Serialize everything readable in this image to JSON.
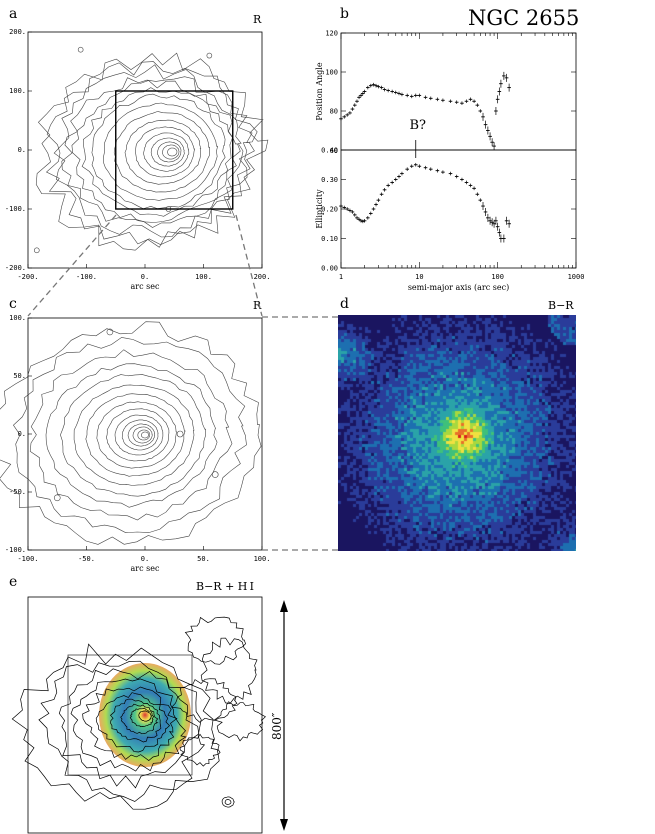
{
  "figure": {
    "title": "NGC 2655",
    "panels": {
      "a": {
        "letter": "a",
        "band": "R",
        "xlabel": "arc sec"
      },
      "b": {
        "letter": "b",
        "annotation": "B?"
      },
      "c": {
        "letter": "c",
        "band": "R",
        "xlabel": "arc sec"
      },
      "d": {
        "letter": "d",
        "band": "B−R"
      },
      "e": {
        "letter": "e",
        "band": "B−R + H I",
        "scale_label": "800″"
      }
    }
  },
  "chart_data": [
    {
      "id": "a",
      "type": "contour",
      "band": "R",
      "xlabel": "arc sec",
      "xlim": [
        -200,
        200
      ],
      "ylim": [
        -200,
        200
      ],
      "xticks": [
        "-200.",
        "-100.",
        "0.",
        "100.",
        "200."
      ],
      "yticks": [
        "200.",
        "100.",
        "0.",
        "-100.",
        "-200."
      ],
      "center": [
        50,
        0
      ],
      "inset_box": {
        "x": [
          -50,
          150
        ],
        "y": [
          -100,
          100
        ]
      }
    },
    {
      "id": "b",
      "type": "scatter",
      "xlabel": "semi-major axis (arc sec)",
      "xscale": "log",
      "xlim": [
        1,
        1000
      ],
      "xticks": [
        "1",
        "10",
        "100",
        "1000"
      ],
      "annotation": {
        "text": "B?",
        "x": 9
      },
      "panels": [
        {
          "ylabel": "Position Angle",
          "ylim": [
            60,
            120
          ],
          "yticks": [
            "60",
            "80",
            "100",
            "120"
          ],
          "points": [
            [
              1.0,
              76
            ],
            [
              1.1,
              77
            ],
            [
              1.2,
              78
            ],
            [
              1.3,
              79
            ],
            [
              1.4,
              81
            ],
            [
              1.5,
              83
            ],
            [
              1.6,
              85
            ],
            [
              1.7,
              87
            ],
            [
              1.8,
              88
            ],
            [
              1.9,
              89
            ],
            [
              2.0,
              90
            ],
            [
              2.2,
              92
            ],
            [
              2.4,
              93
            ],
            [
              2.6,
              93.5
            ],
            [
              2.8,
              93
            ],
            [
              3.0,
              92.5
            ],
            [
              3.3,
              92
            ],
            [
              3.6,
              91
            ],
            [
              4.0,
              90.5
            ],
            [
              4.5,
              90
            ],
            [
              5.0,
              89.5
            ],
            [
              5.5,
              89
            ],
            [
              6.0,
              88.5
            ],
            [
              7.0,
              88
            ],
            [
              8.0,
              87.5
            ],
            [
              9.0,
              88
            ],
            [
              10,
              88
            ],
            [
              12,
              87
            ],
            [
              14,
              86.5
            ],
            [
              17,
              86
            ],
            [
              20,
              85.5
            ],
            [
              25,
              85
            ],
            [
              30,
              84.5
            ],
            [
              35,
              84
            ],
            [
              40,
              85
            ],
            [
              45,
              86
            ],
            [
              50,
              85
            ],
            [
              55,
              83
            ],
            [
              60,
              80
            ],
            [
              65,
              77
            ],
            [
              70,
              73
            ],
            [
              75,
              70
            ],
            [
              80,
              67
            ],
            [
              85,
              64
            ],
            [
              90,
              62
            ],
            [
              95,
              80
            ],
            [
              100,
              86
            ],
            [
              105,
              90
            ],
            [
              110,
              94
            ],
            [
              120,
              98
            ],
            [
              130,
              97
            ],
            [
              140,
              92
            ]
          ]
        },
        {
          "ylabel": "Ellipticity",
          "ylim": [
            0,
            0.4
          ],
          "yticks": [
            "0.00",
            "0.10",
            "0.20",
            "0.30",
            "0.40"
          ],
          "points": [
            [
              1.0,
              0.21
            ],
            [
              1.1,
              0.205
            ],
            [
              1.2,
              0.2
            ],
            [
              1.3,
              0.195
            ],
            [
              1.4,
              0.19
            ],
            [
              1.5,
              0.18
            ],
            [
              1.6,
              0.17
            ],
            [
              1.7,
              0.165
            ],
            [
              1.8,
              0.16
            ],
            [
              1.9,
              0.158
            ],
            [
              2.0,
              0.16
            ],
            [
              2.2,
              0.17
            ],
            [
              2.4,
              0.185
            ],
            [
              2.6,
              0.2
            ],
            [
              2.8,
              0.215
            ],
            [
              3.0,
              0.23
            ],
            [
              3.3,
              0.25
            ],
            [
              3.6,
              0.265
            ],
            [
              4.0,
              0.28
            ],
            [
              4.5,
              0.29
            ],
            [
              5.0,
              0.3
            ],
            [
              5.5,
              0.31
            ],
            [
              6.0,
              0.32
            ],
            [
              7.0,
              0.335
            ],
            [
              8.0,
              0.345
            ],
            [
              9.0,
              0.35
            ],
            [
              10,
              0.345
            ],
            [
              12,
              0.34
            ],
            [
              14,
              0.335
            ],
            [
              17,
              0.33
            ],
            [
              20,
              0.325
            ],
            [
              25,
              0.32
            ],
            [
              30,
              0.31
            ],
            [
              35,
              0.3
            ],
            [
              40,
              0.29
            ],
            [
              45,
              0.28
            ],
            [
              50,
              0.27
            ],
            [
              55,
              0.25
            ],
            [
              60,
              0.23
            ],
            [
              65,
              0.21
            ],
            [
              70,
              0.19
            ],
            [
              75,
              0.17
            ],
            [
              80,
              0.16
            ],
            [
              85,
              0.155
            ],
            [
              90,
              0.15
            ],
            [
              95,
              0.16
            ],
            [
              100,
              0.14
            ],
            [
              105,
              0.12
            ],
            [
              110,
              0.1
            ],
            [
              120,
              0.1
            ],
            [
              130,
              0.16
            ],
            [
              140,
              0.15
            ]
          ]
        }
      ]
    },
    {
      "id": "c",
      "type": "contour",
      "band": "R",
      "xlabel": "arc sec",
      "xlim": [
        -100,
        100
      ],
      "ylim": [
        -100,
        100
      ],
      "xticks": [
        "-100.",
        "-50.",
        "0.",
        "50.",
        "100."
      ],
      "yticks": [
        "100.",
        "50.",
        "0.",
        "-50.",
        "-100."
      ],
      "center": [
        0,
        0
      ]
    },
    {
      "id": "d",
      "type": "heatmap",
      "band": "B−R",
      "colors": [
        "#1a1560",
        "#2a3c9a",
        "#1d6fb0",
        "#2aa3a8",
        "#3fc07a",
        "#a8d83e",
        "#f0e040",
        "#e8702a",
        "#d8221c"
      ]
    },
    {
      "id": "e",
      "type": "contour",
      "band": "B−R + H I",
      "scale_bar": "800″"
    }
  ]
}
